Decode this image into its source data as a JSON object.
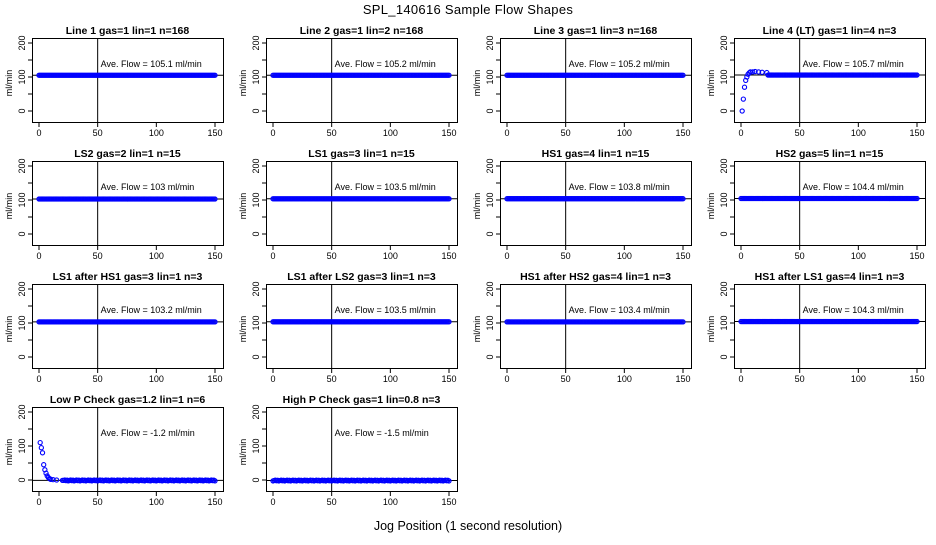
{
  "figure": {
    "title": "SPL_140616  Sample Flow Shapes",
    "xlabel": "Jog Position (1 second resolution)"
  },
  "chart_data": [
    {
      "type": "scatter",
      "title": "Line 1 gas=1 lin=1 n=168",
      "annotation": "Ave. Flow =  105.1  ml/min",
      "ylabel": "ml/min",
      "xlim": [
        0,
        150
      ],
      "ylim": [
        0,
        200
      ],
      "xticks": [
        0,
        50,
        100,
        150
      ],
      "yticks": [
        0,
        100,
        200
      ],
      "vline": 50,
      "hline": 105.1,
      "marker_color": "#0000ff",
      "shape": "flat",
      "steady": 105.1
    },
    {
      "type": "scatter",
      "title": "Line 2 gas=1 lin=2 n=168",
      "annotation": "Ave. Flow =  105.2  ml/min",
      "ylabel": "ml/min",
      "xlim": [
        0,
        150
      ],
      "ylim": [
        0,
        200
      ],
      "xticks": [
        0,
        50,
        100,
        150
      ],
      "yticks": [
        0,
        100,
        200
      ],
      "vline": 50,
      "hline": 105.2,
      "marker_color": "#0000ff",
      "shape": "flat",
      "steady": 105.2
    },
    {
      "type": "scatter",
      "title": "Line 3 gas=1 lin=3 n=168",
      "annotation": "Ave. Flow =  105.2  ml/min",
      "ylabel": "ml/min",
      "xlim": [
        0,
        150
      ],
      "ylim": [
        0,
        200
      ],
      "xticks": [
        0,
        50,
        100,
        150
      ],
      "yticks": [
        0,
        100,
        200
      ],
      "vline": 50,
      "hline": 105.2,
      "marker_color": "#0000ff",
      "shape": "flat",
      "steady": 105.2
    },
    {
      "type": "scatter",
      "title": "Line 4 (LT) gas=1 lin=4 n=3",
      "annotation": "Ave. Flow =  105.7  ml/min",
      "ylabel": "ml/min",
      "xlim": [
        0,
        150
      ],
      "ylim": [
        0,
        200
      ],
      "xticks": [
        0,
        50,
        100,
        150
      ],
      "yticks": [
        0,
        100,
        200
      ],
      "vline": 50,
      "hline": 105.7,
      "marker_color": "#0000ff",
      "shape": "rise",
      "steady": 105.7,
      "points": [
        [
          1,
          0
        ],
        [
          2,
          35
        ],
        [
          3,
          70
        ],
        [
          4,
          90
        ],
        [
          5,
          100
        ],
        [
          6,
          108
        ],
        [
          7,
          112
        ],
        [
          8,
          115
        ],
        [
          10,
          115
        ],
        [
          12,
          116
        ],
        [
          15,
          115
        ],
        [
          18,
          114
        ],
        [
          22,
          113
        ]
      ]
    },
    {
      "type": "scatter",
      "title": "LS2 gas=2 lin=1 n=15",
      "annotation": "Ave. Flow =  103  ml/min",
      "ylabel": "ml/min",
      "xlim": [
        0,
        150
      ],
      "ylim": [
        0,
        200
      ],
      "xticks": [
        0,
        50,
        100,
        150
      ],
      "yticks": [
        0,
        100,
        200
      ],
      "vline": 50,
      "hline": 103,
      "marker_color": "#0000ff",
      "shape": "flat",
      "steady": 103
    },
    {
      "type": "scatter",
      "title": "LS1 gas=3 lin=1 n=15",
      "annotation": "Ave. Flow =  103.5  ml/min",
      "ylabel": "ml/min",
      "xlim": [
        0,
        150
      ],
      "ylim": [
        0,
        200
      ],
      "xticks": [
        0,
        50,
        100,
        150
      ],
      "yticks": [
        0,
        100,
        200
      ],
      "vline": 50,
      "hline": 103.5,
      "marker_color": "#0000ff",
      "shape": "flat",
      "steady": 103.5
    },
    {
      "type": "scatter",
      "title": "HS1 gas=4 lin=1 n=15",
      "annotation": "Ave. Flow =  103.8  ml/min",
      "ylabel": "ml/min",
      "xlim": [
        0,
        150
      ],
      "ylim": [
        0,
        200
      ],
      "xticks": [
        0,
        50,
        100,
        150
      ],
      "yticks": [
        0,
        100,
        200
      ],
      "vline": 50,
      "hline": 103.8,
      "marker_color": "#0000ff",
      "shape": "flat",
      "steady": 103.8
    },
    {
      "type": "scatter",
      "title": "HS2 gas=5 lin=1 n=15",
      "annotation": "Ave. Flow =  104.4  ml/min",
      "ylabel": "ml/min",
      "xlim": [
        0,
        150
      ],
      "ylim": [
        0,
        200
      ],
      "xticks": [
        0,
        50,
        100,
        150
      ],
      "yticks": [
        0,
        100,
        200
      ],
      "vline": 50,
      "hline": 104.4,
      "marker_color": "#0000ff",
      "shape": "flat",
      "steady": 104.4
    },
    {
      "type": "scatter",
      "title": "LS1 after HS1 gas=3 lin=1 n=3",
      "annotation": "Ave. Flow =  103.2  ml/min",
      "ylabel": "ml/min",
      "xlim": [
        0,
        150
      ],
      "ylim": [
        0,
        200
      ],
      "xticks": [
        0,
        50,
        100,
        150
      ],
      "yticks": [
        0,
        100,
        200
      ],
      "vline": 50,
      "hline": 103.2,
      "marker_color": "#0000ff",
      "shape": "flat",
      "steady": 103.2
    },
    {
      "type": "scatter",
      "title": "LS1 after LS2 gas=3 lin=1 n=3",
      "annotation": "Ave. Flow =  103.5  ml/min",
      "ylabel": "ml/min",
      "xlim": [
        0,
        150
      ],
      "ylim": [
        0,
        200
      ],
      "xticks": [
        0,
        50,
        100,
        150
      ],
      "yticks": [
        0,
        100,
        200
      ],
      "vline": 50,
      "hline": 103.5,
      "marker_color": "#0000ff",
      "shape": "flat",
      "steady": 103.5
    },
    {
      "type": "scatter",
      "title": "HS1 after HS2 gas=4 lin=1 n=3",
      "annotation": "Ave. Flow =  103.4  ml/min",
      "ylabel": "ml/min",
      "xlim": [
        0,
        150
      ],
      "ylim": [
        0,
        200
      ],
      "xticks": [
        0,
        50,
        100,
        150
      ],
      "yticks": [
        0,
        100,
        200
      ],
      "vline": 50,
      "hline": 103.4,
      "marker_color": "#0000ff",
      "shape": "flat",
      "steady": 103.4
    },
    {
      "type": "scatter",
      "title": "HS1 after LS1 gas=4 lin=1 n=3",
      "annotation": "Ave. Flow =  104.3  ml/min",
      "ylabel": "ml/min",
      "xlim": [
        0,
        150
      ],
      "ylim": [
        0,
        200
      ],
      "xticks": [
        0,
        50,
        100,
        150
      ],
      "yticks": [
        0,
        100,
        200
      ],
      "vline": 50,
      "hline": 104.3,
      "marker_color": "#0000ff",
      "shape": "flat",
      "steady": 104.3
    },
    {
      "type": "scatter",
      "title": "Low P Check gas=1.2 lin=1 n=6",
      "annotation": "Ave. Flow =  -1.2  ml/min",
      "ylabel": "ml/min",
      "xlim": [
        0,
        150
      ],
      "ylim": [
        0,
        200
      ],
      "xticks": [
        0,
        50,
        100,
        150
      ],
      "yticks": [
        0,
        100,
        200
      ],
      "vline": 50,
      "hline": -1.2,
      "marker_color": "#0000ff",
      "shape": "decay",
      "steady": -1.2,
      "points": [
        [
          1,
          110
        ],
        [
          2,
          95
        ],
        [
          3,
          80
        ],
        [
          4,
          45
        ],
        [
          5,
          30
        ],
        [
          6,
          20
        ],
        [
          7,
          12
        ],
        [
          8,
          7
        ],
        [
          9,
          4
        ],
        [
          10,
          2
        ],
        [
          12,
          1
        ],
        [
          15,
          0
        ],
        [
          20,
          -1
        ]
      ]
    },
    {
      "type": "scatter",
      "title": "High P Check gas=1 lin=0.8 n=3",
      "annotation": "Ave. Flow =  -1.5  ml/min",
      "ylabel": "ml/min",
      "xlim": [
        0,
        150
      ],
      "ylim": [
        0,
        200
      ],
      "xticks": [
        0,
        50,
        100,
        150
      ],
      "yticks": [
        0,
        100,
        200
      ],
      "vline": 50,
      "hline": -1.5,
      "marker_color": "#0000ff",
      "shape": "flat",
      "steady": -1.5
    }
  ]
}
